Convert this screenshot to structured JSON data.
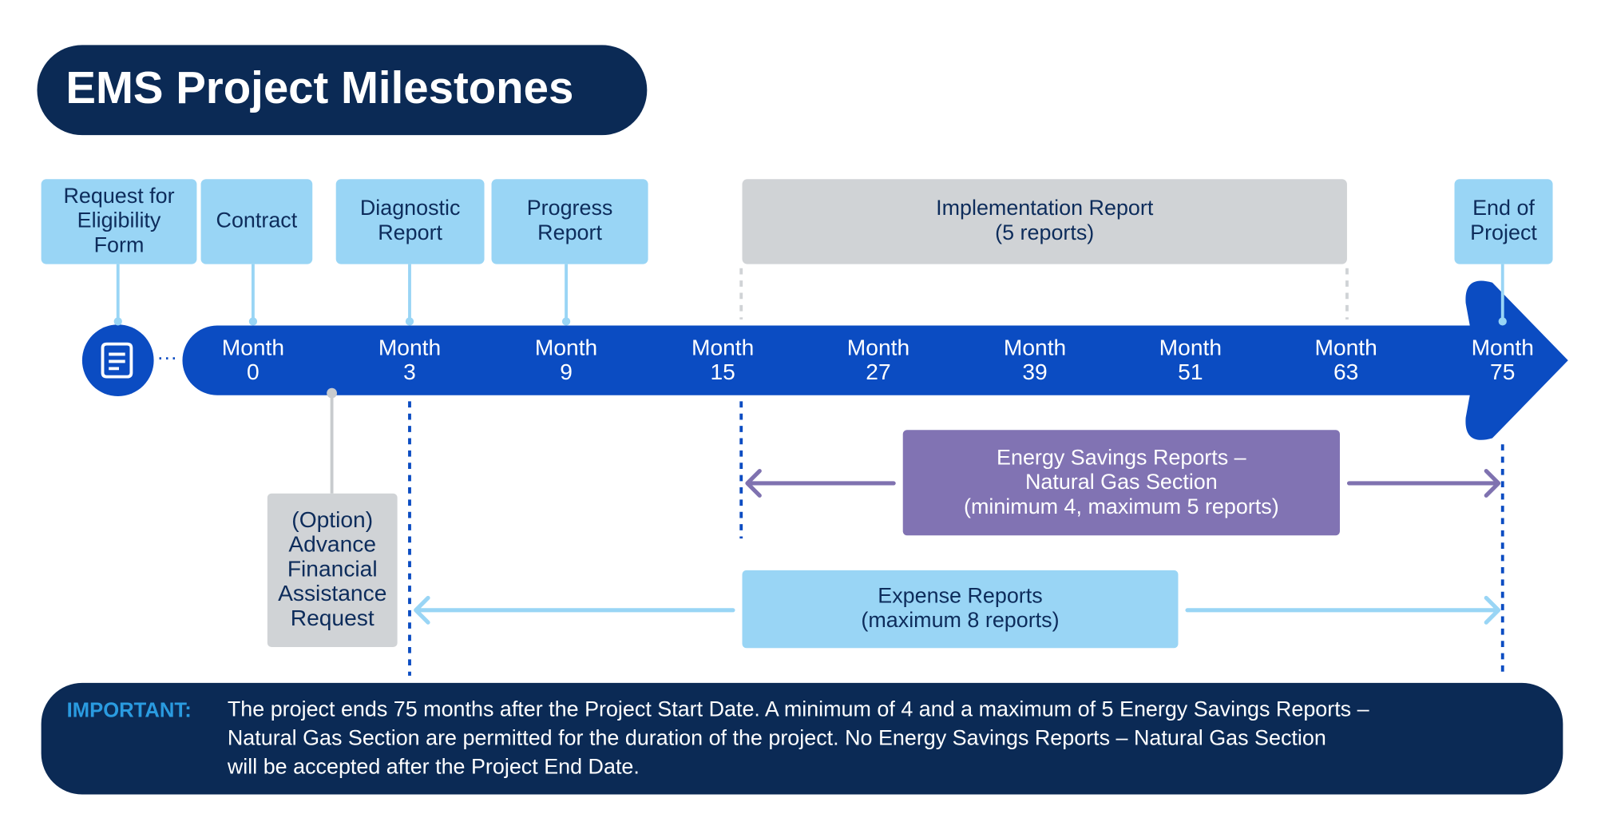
{
  "title": "EMS Project Milestones",
  "milestones": [
    {
      "lines": [
        "Request for",
        "Eligibility",
        "Form"
      ]
    },
    {
      "lines": [
        "Contract"
      ]
    },
    {
      "lines": [
        "Diagnostic",
        "Report"
      ]
    },
    {
      "lines": [
        "Progress",
        "Report"
      ]
    },
    {
      "lines": [
        "Implementation Report",
        "(5 reports)"
      ]
    },
    {
      "lines": [
        "End of",
        "Project"
      ]
    }
  ],
  "timeline": [
    {
      "lines": [
        "Month",
        "0"
      ]
    },
    {
      "lines": [
        "Month",
        "3"
      ]
    },
    {
      "lines": [
        "Month",
        "9"
      ]
    },
    {
      "lines": [
        "Month",
        "15"
      ]
    },
    {
      "lines": [
        "Month",
        "27"
      ]
    },
    {
      "lines": [
        "Month",
        "39"
      ]
    },
    {
      "lines": [
        "Month",
        "51"
      ]
    },
    {
      "lines": [
        "Month",
        "63"
      ]
    },
    {
      "lines": [
        "Month",
        "75"
      ]
    }
  ],
  "option": {
    "lines": [
      "(Option)",
      "Advance",
      "Financial",
      "Assistance",
      "Request"
    ]
  },
  "energy_savings": {
    "lines": [
      "Energy Savings Reports –",
      "Natural Gas Section",
      "(minimum 4, maximum 5 reports)"
    ]
  },
  "expense": {
    "lines": [
      "Expense Reports",
      "(maximum 8 reports)"
    ]
  },
  "important": {
    "label": "IMPORTANT:",
    "lines": [
      "The project ends 75 months after the Project Start Date. A minimum of 4 and a maximum of 5 Energy Savings Reports –",
      "Natural Gas Section are permitted for the duration of the project. No Energy Savings Reports – Natural Gas Section",
      "will be accepted after the Project End Date."
    ]
  }
}
